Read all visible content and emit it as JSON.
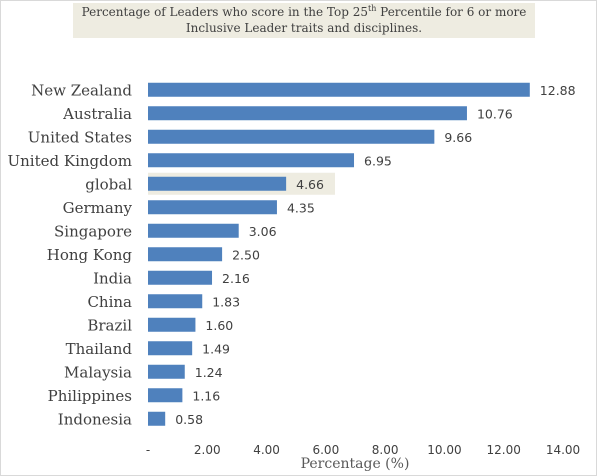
{
  "chart_data": {
    "type": "bar",
    "orientation": "horizontal",
    "title_prefix": "Percentage of Leaders who score in the Top 25",
    "title_superscript": "th",
    "title_suffix": " Percentile for 6 or more",
    "title_line2": "Inclusive Leader traits and disciplines.",
    "categories": [
      "New Zealand",
      "Australia",
      "United States",
      "United Kingdom",
      "global",
      "Germany",
      "Singapore",
      "Hong Kong",
      "India",
      "China",
      "Brazil",
      "Thailand",
      "Malaysia",
      "Philippines",
      "Indonesia"
    ],
    "values": [
      12.88,
      10.76,
      9.66,
      6.95,
      4.66,
      4.35,
      3.06,
      2.5,
      2.16,
      1.83,
      1.6,
      1.49,
      1.24,
      1.16,
      0.58
    ],
    "value_labels": [
      "12.88",
      "10.76",
      "9.66",
      "6.95",
      "4.66",
      "4.35",
      "3.06",
      "2.50",
      "2.16",
      "1.83",
      "1.60",
      "1.49",
      "1.24",
      "1.16",
      "0.58"
    ],
    "highlighted_category": "global",
    "xlabel": "Percentage (%)",
    "xlim": [
      0,
      14
    ],
    "x_ticks": [
      0,
      2,
      4,
      6,
      8,
      10,
      12,
      14
    ],
    "x_tick_labels": [
      "-",
      "2.00",
      "4.00",
      "6.00",
      "8.00",
      "10.00",
      "12.00",
      "14.00"
    ],
    "grid": false,
    "legend": "none",
    "colors": {
      "bar": "#4f81bd",
      "highlight": "#eeece1",
      "title_background": "#eeece1",
      "text": "#404040"
    }
  }
}
